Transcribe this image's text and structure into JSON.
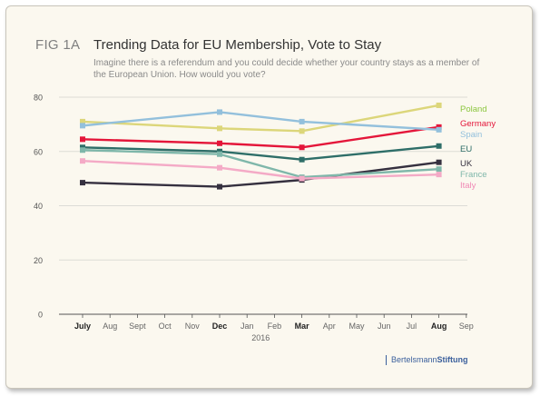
{
  "figure": {
    "label": "FIG 1A",
    "title": "Trending Data for EU Membership, Vote to Stay",
    "subtitle": "Imagine there is a referendum and you could decide whether your country stays as a member of the European Union. How would you vote?"
  },
  "logo": {
    "part1": "Bertelsmann",
    "part2": "Stiftung"
  },
  "chart_data": {
    "type": "line",
    "title": "Trending Data for EU Membership, Vote to Stay",
    "x_ticks": [
      "July",
      "Aug",
      "Sept",
      "Oct",
      "Nov",
      "Dec",
      "Jan",
      "Feb",
      "Mar",
      "Apr",
      "May",
      "Jun",
      "Jul",
      "Aug",
      "Sep"
    ],
    "x_ticks_bold": [
      "July",
      "Dec",
      "Mar",
      "Aug"
    ],
    "year_label": "2016",
    "x_points": [
      "July",
      "Dec",
      "Mar",
      "Aug"
    ],
    "x_point_index": [
      0,
      5,
      8,
      13
    ],
    "ylim": [
      0,
      80
    ],
    "y_ticks": [
      0,
      20,
      40,
      60,
      80
    ],
    "grid": true,
    "legend_placement": "right, labels at line ends",
    "series": [
      {
        "name": "Poland",
        "color": "#8cc63f",
        "line_color": "#dcd67a",
        "values": [
          71,
          68.5,
          67.5,
          77
        ]
      },
      {
        "name": "Germany",
        "color": "#e4163a",
        "line_color": "#e4163a",
        "values": [
          64.5,
          63,
          61.5,
          69
        ]
      },
      {
        "name": "Spain",
        "color": "#93c0dc",
        "line_color": "#93c0dc",
        "values": [
          69.5,
          74.5,
          71,
          68
        ]
      },
      {
        "name": "EU",
        "color": "#2e6e68",
        "line_color": "#2e6e68",
        "values": [
          61.5,
          60,
          57,
          62
        ]
      },
      {
        "name": "UK",
        "color": "#35303f",
        "line_color": "#35303f",
        "values": [
          48.5,
          47,
          49.5,
          56
        ]
      },
      {
        "name": "France",
        "color": "#7fb7aa",
        "line_color": "#7fb7aa",
        "values": [
          60.5,
          59,
          50.5,
          53.5
        ]
      },
      {
        "name": "Italy",
        "color": "#f08ab5",
        "line_color": "#f4aac6",
        "values": [
          56.5,
          54,
          50,
          51.5
        ]
      }
    ],
    "label_order": [
      "Poland",
      "Germany",
      "Spain",
      "EU",
      "UK",
      "France",
      "Italy"
    ]
  }
}
